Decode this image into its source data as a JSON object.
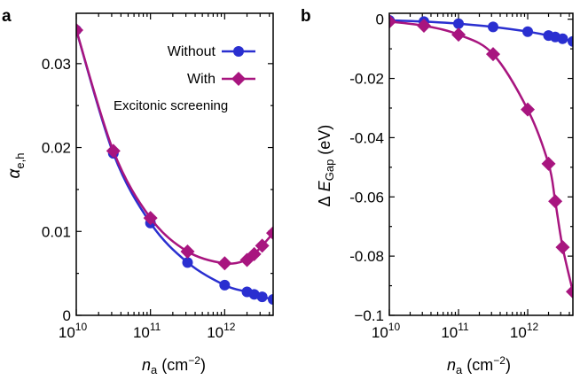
{
  "colors": {
    "without": "#2a2fd0",
    "with": "#a8157f",
    "axis": "#000000"
  },
  "legend": {
    "without_label": "Without",
    "with_label": "With",
    "note": "Excitonic screening"
  },
  "chart_data": [
    {
      "panel_label": "a",
      "type": "line",
      "x_scale": "log",
      "xlabel_main": "n",
      "xlabel_sub": "a",
      "xlabel_unit": "(cm",
      "xlabel_exp": "−2",
      "xlabel_close": ")",
      "ylabel_main": "α",
      "ylabel_sub": "e,h",
      "xlim": [
        10000000000.0,
        4500000000000.0
      ],
      "ylim": [
        0,
        0.036
      ],
      "x_ticks": [
        {
          "value": 10000000000.0,
          "base": "10",
          "exp": "10"
        },
        {
          "value": 100000000000.0,
          "base": "10",
          "exp": "11"
        },
        {
          "value": 1000000000000.0,
          "base": "10",
          "exp": "12"
        }
      ],
      "y_ticks": [
        {
          "value": 0,
          "label": "0"
        },
        {
          "value": 0.01,
          "label": "0.01"
        },
        {
          "value": 0.02,
          "label": "0.02"
        },
        {
          "value": 0.03,
          "label": "0.03"
        }
      ],
      "series": [
        {
          "name": "Without",
          "marker": "circle",
          "color_key": "without",
          "x": [
            10000000000.0,
            31600000000.0,
            100000000000.0,
            316000000000.0,
            1000000000000.0,
            2000000000000.0,
            2500000000000.0,
            3200000000000.0,
            4500000000000.0
          ],
          "y": [
            0.034,
            0.0193,
            0.011,
            0.0063,
            0.0036,
            0.0028,
            0.0025,
            0.0022,
            0.0019
          ]
        },
        {
          "name": "With",
          "marker": "diamond",
          "color_key": "with",
          "x": [
            10000000000.0,
            31600000000.0,
            100000000000.0,
            316000000000.0,
            1000000000000.0,
            2000000000000.0,
            2500000000000.0,
            3200000000000.0,
            4500000000000.0
          ],
          "y": [
            0.034,
            0.0196,
            0.0116,
            0.0076,
            0.0062,
            0.0066,
            0.0073,
            0.0083,
            0.0098
          ]
        }
      ]
    },
    {
      "panel_label": "b",
      "type": "line",
      "x_scale": "log",
      "xlabel_main": "n",
      "xlabel_sub": "a",
      "xlabel_unit": "(cm",
      "xlabel_exp": "−2",
      "xlabel_close": ")",
      "ylabel_prefix": "Δ",
      "ylabel_main": "E",
      "ylabel_sub": "Gap",
      "ylabel_unit": "(eV)",
      "xlim": [
        10000000000.0,
        4500000000000.0
      ],
      "ylim": [
        -0.1,
        0.002
      ],
      "x_ticks": [
        {
          "value": 10000000000.0,
          "base": "10",
          "exp": "10"
        },
        {
          "value": 100000000000.0,
          "base": "10",
          "exp": "11"
        },
        {
          "value": 1000000000000.0,
          "base": "10",
          "exp": "12"
        }
      ],
      "y_ticks": [
        {
          "value": 0,
          "label": "0"
        },
        {
          "value": -0.02,
          "label": "-0.02"
        },
        {
          "value": -0.04,
          "label": "-0.04"
        },
        {
          "value": -0.06,
          "label": "-0.06"
        },
        {
          "value": -0.08,
          "label": "-0.08"
        },
        {
          "value": -0.1,
          "label": "−0.1"
        }
      ],
      "series": [
        {
          "name": "Without",
          "marker": "circle",
          "color_key": "without",
          "x": [
            10000000000.0,
            31600000000.0,
            100000000000.0,
            316000000000.0,
            1000000000000.0,
            2000000000000.0,
            2500000000000.0,
            3200000000000.0,
            4500000000000.0
          ],
          "y": [
            -0.0004,
            -0.0008,
            -0.0015,
            -0.0026,
            -0.0042,
            -0.0055,
            -0.006,
            -0.0066,
            -0.0075
          ]
        },
        {
          "name": "With",
          "marker": "diamond",
          "color_key": "with",
          "x": [
            10000000000.0,
            31600000000.0,
            100000000000.0,
            316000000000.0,
            1000000000000.0,
            2000000000000.0,
            2500000000000.0,
            3200000000000.0,
            4500000000000.0
          ],
          "y": [
            -0.0008,
            -0.0022,
            -0.0052,
            -0.0118,
            -0.0305,
            -0.0488,
            -0.0615,
            -0.077,
            -0.092
          ]
        }
      ]
    }
  ]
}
